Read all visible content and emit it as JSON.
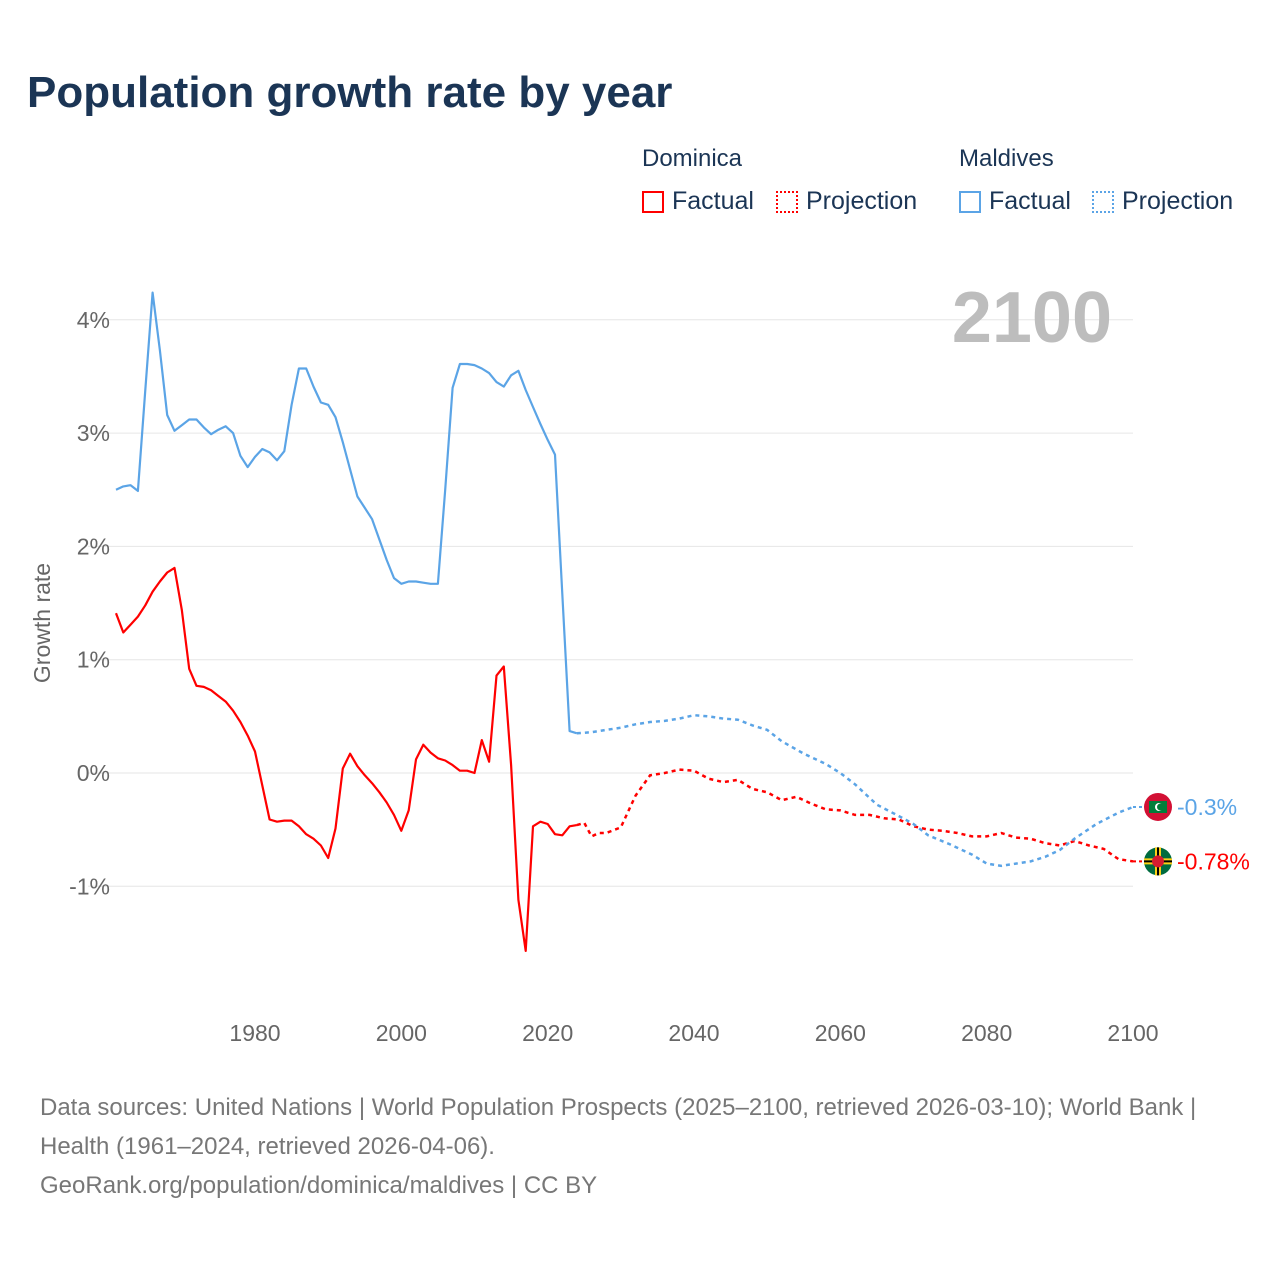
{
  "title": "Population growth rate by year",
  "legend": {
    "groups": [
      {
        "name": "Dominica",
        "color": "#ff0000",
        "factual_label": "Factual",
        "projection_label": "Projection"
      },
      {
        "name": "Maldives",
        "color": "#5ba4e6",
        "factual_label": "Factual",
        "projection_label": "Projection"
      }
    ]
  },
  "year_display": "2100",
  "footer": {
    "sources": "Data sources: United Nations | World Population Prospects (2025–2100, retrieved 2026-03-10); World Bank | Health (1961–2024, retrieved 2026-04-06).",
    "credit": "GeoRank.org/population/dominica/maldives | CC BY"
  },
  "chart_data": {
    "type": "line",
    "title": "Population growth rate by year",
    "xlabel": "",
    "ylabel": "Growth rate",
    "xlim": [
      1961,
      2100
    ],
    "ylim": [
      -2.1,
      4.4
    ],
    "x_ticks": [
      1980,
      2000,
      2020,
      2040,
      2060,
      2080,
      2100
    ],
    "x_tick_labels": [
      "1980",
      "2000",
      "2020",
      "2040",
      "2060",
      "2080",
      "2100"
    ],
    "y_ticks": [
      -1,
      0,
      1,
      2,
      3,
      4
    ],
    "y_tick_labels": [
      "-1%",
      "0%",
      "1%",
      "2%",
      "3%",
      "4%"
    ],
    "grid": true,
    "legend_position": "top-right",
    "series": [
      {
        "name": "Dominica",
        "color": "#ff0000",
        "end_label": "-0.78%",
        "flag": "dominica-flag",
        "factual": {
          "x_start": 1961,
          "values": [
            1.41,
            1.24,
            1.31,
            1.38,
            1.48,
            1.6,
            1.69,
            1.77,
            1.81,
            1.44,
            0.92,
            0.77,
            0.76,
            0.73,
            0.68,
            0.63,
            0.55,
            0.45,
            0.33,
            0.19,
            -0.11,
            -0.41,
            -0.43,
            -0.42,
            -0.42,
            -0.47,
            -0.54,
            -0.58,
            -0.64,
            -0.75,
            -0.49,
            0.04,
            0.17,
            0.06,
            -0.02,
            -0.09,
            -0.17,
            -0.26,
            -0.37,
            -0.51,
            -0.33,
            0.12,
            0.25,
            0.18,
            0.13,
            0.11,
            0.07,
            0.02,
            0.02,
            0.0,
            0.29,
            0.1,
            0.86,
            0.94,
            0.07,
            -1.12,
            -1.57,
            -0.47,
            -0.43,
            -0.45,
            -0.54,
            -0.55,
            -0.47,
            -0.46
          ]
        },
        "projection": {
          "x": [
            2024,
            2025,
            2026,
            2027,
            2028,
            2030,
            2032,
            2034,
            2036,
            2038,
            2040,
            2042,
            2044,
            2046,
            2048,
            2050,
            2052,
            2054,
            2056,
            2058,
            2060,
            2062,
            2064,
            2066,
            2068,
            2070,
            2072,
            2074,
            2076,
            2078,
            2080,
            2082,
            2084,
            2086,
            2088,
            2090,
            2092,
            2094,
            2096,
            2098,
            2100
          ],
          "values": [
            -0.46,
            -0.44,
            -0.56,
            -0.53,
            -0.53,
            -0.48,
            -0.2,
            -0.02,
            0.0,
            0.03,
            0.02,
            -0.05,
            -0.08,
            -0.06,
            -0.14,
            -0.17,
            -0.24,
            -0.21,
            -0.27,
            -0.32,
            -0.33,
            -0.37,
            -0.37,
            -0.4,
            -0.41,
            -0.47,
            -0.5,
            -0.51,
            -0.53,
            -0.56,
            -0.56,
            -0.53,
            -0.57,
            -0.58,
            -0.62,
            -0.64,
            -0.6,
            -0.64,
            -0.67,
            -0.76,
            -0.78
          ]
        }
      },
      {
        "name": "Maldives",
        "color": "#5ba4e6",
        "end_label": "-0.3%",
        "flag": "maldives-flag",
        "factual": {
          "x_start": 1961,
          "values": [
            2.5,
            2.53,
            2.54,
            2.49,
            3.38,
            4.24,
            3.73,
            3.16,
            3.02,
            3.07,
            3.12,
            3.12,
            3.05,
            2.99,
            3.03,
            3.06,
            3.0,
            2.8,
            2.7,
            2.79,
            2.86,
            2.83,
            2.76,
            2.84,
            3.25,
            3.57,
            3.57,
            3.41,
            3.27,
            3.25,
            3.14,
            2.92,
            2.68,
            2.44,
            2.34,
            2.24,
            2.06,
            1.88,
            1.72,
            1.67,
            1.69,
            1.69,
            1.68,
            1.67,
            1.67,
            2.5,
            3.4,
            3.61,
            3.61,
            3.6,
            3.57,
            3.53,
            3.45,
            3.41,
            3.51,
            3.55,
            3.38,
            3.23,
            3.08,
            2.94,
            2.81,
            1.58,
            0.37,
            0.35
          ]
        },
        "projection": {
          "x": [
            2024,
            2026,
            2028,
            2030,
            2032,
            2034,
            2036,
            2038,
            2040,
            2042,
            2044,
            2046,
            2048,
            2050,
            2052,
            2055,
            2058,
            2060,
            2062,
            2065,
            2068,
            2070,
            2072,
            2075,
            2078,
            2080,
            2082,
            2084,
            2086,
            2088,
            2090,
            2092,
            2095,
            2098,
            2100
          ],
          "values": [
            0.35,
            0.36,
            0.38,
            0.4,
            0.43,
            0.45,
            0.46,
            0.48,
            0.51,
            0.5,
            0.48,
            0.47,
            0.42,
            0.38,
            0.28,
            0.17,
            0.08,
            0.0,
            -0.1,
            -0.28,
            -0.38,
            -0.45,
            -0.55,
            -0.63,
            -0.72,
            -0.8,
            -0.82,
            -0.8,
            -0.78,
            -0.74,
            -0.68,
            -0.58,
            -0.45,
            -0.35,
            -0.3
          ]
        }
      }
    ]
  }
}
